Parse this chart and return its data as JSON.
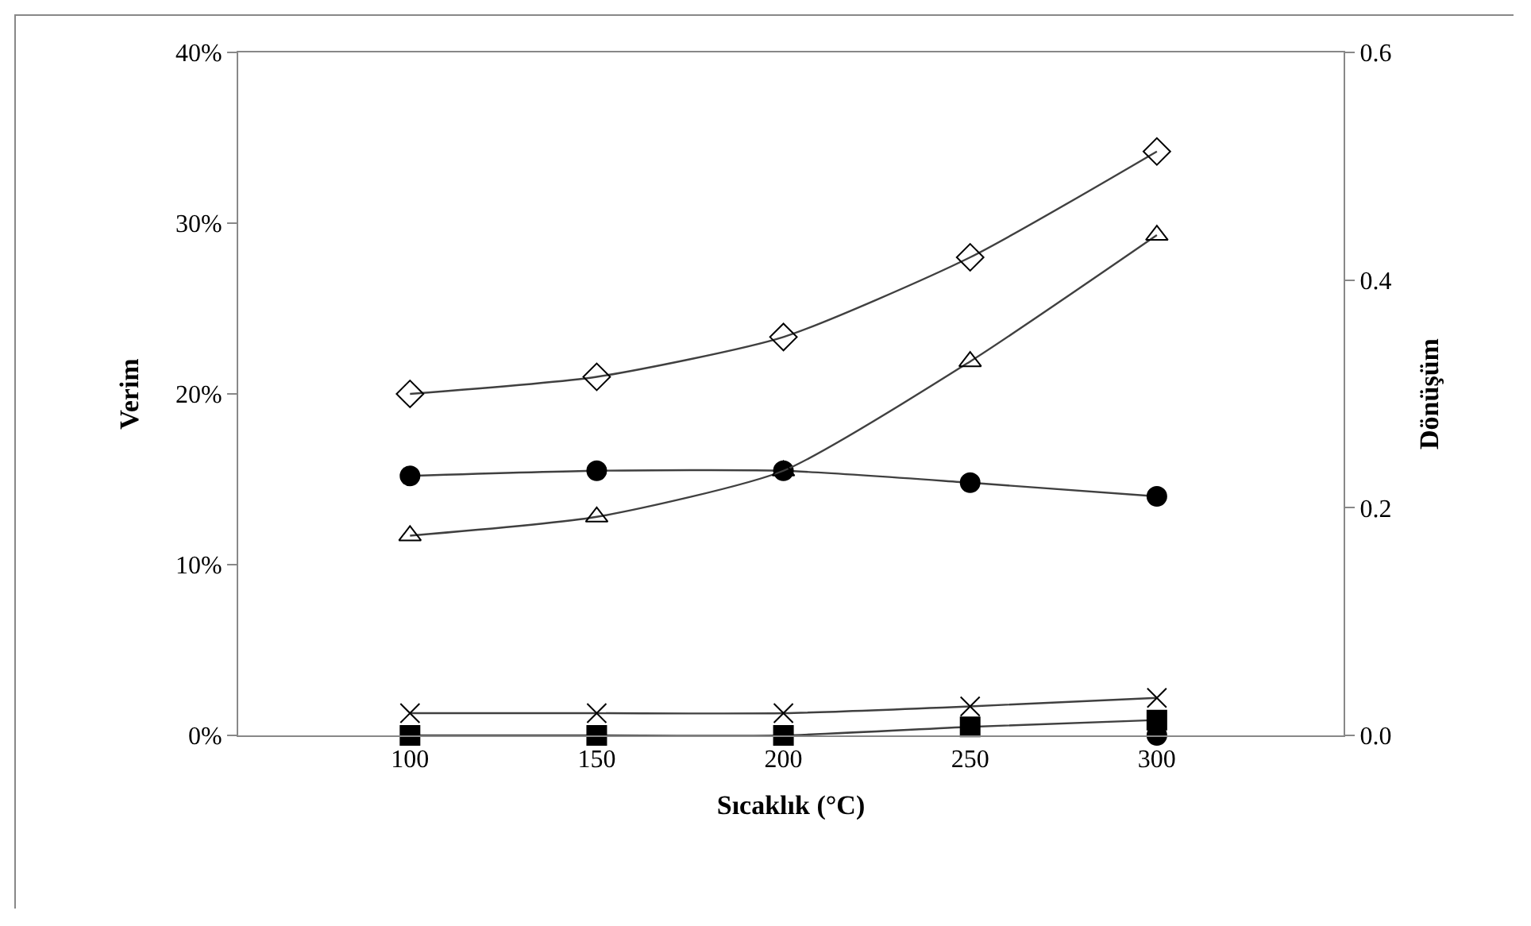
{
  "chart_data": {
    "type": "line",
    "xlabel": "Sıcaklık (°C)",
    "ylabel": "Verim",
    "y2label": "Dönüşüm",
    "x": [
      100,
      150,
      200,
      250,
      300
    ],
    "xlim": [
      54,
      350
    ],
    "xticks": [
      100,
      150,
      200,
      250,
      300
    ],
    "ylim": [
      0,
      40
    ],
    "yticks": [
      {
        "value": 0,
        "label": "0%"
      },
      {
        "value": 10,
        "label": "10%"
      },
      {
        "value": 20,
        "label": "20%"
      },
      {
        "value": 30,
        "label": "30%"
      },
      {
        "value": 40,
        "label": "40%"
      }
    ],
    "y2lim": [
      0,
      0.6
    ],
    "y2ticks": [
      {
        "value": 0,
        "label": "0.0"
      },
      0.2,
      0.4,
      0.6
    ],
    "grid": false,
    "line_style": "solid",
    "series": [
      {
        "color": "#000000",
        "marker": "diamond",
        "axis": "y2",
        "values": [
          0.3,
          0.315,
          0.35,
          0.42,
          0.513
        ]
      },
      {
        "color": "#000000",
        "marker": "circle",
        "values": [
          15.2,
          15.5,
          15.5,
          14.8,
          14.0
        ]
      },
      {
        "color": "#000000",
        "marker": "triangle",
        "values": [
          11.7,
          12.8,
          15.5,
          21.9,
          29.3
        ]
      },
      {
        "color": "#000000",
        "marker": "cross",
        "values": [
          1.3,
          1.3,
          1.3,
          1.7,
          2.2
        ]
      },
      {
        "color": "#000000",
        "marker": "circle",
        "values": [
          null,
          null,
          null,
          null,
          0
        ]
      },
      {
        "color": "#000000",
        "marker": "square",
        "values": [
          0,
          0,
          0,
          0.5,
          0.9
        ]
      }
    ]
  }
}
